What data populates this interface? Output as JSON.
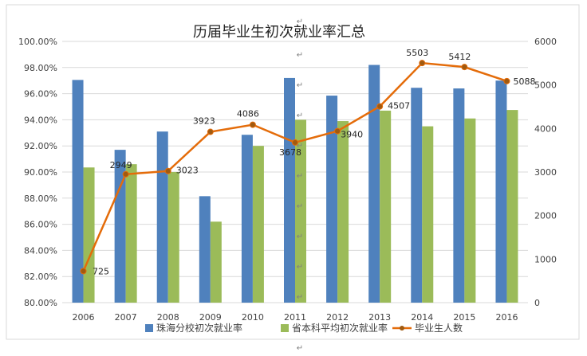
{
  "chart_data": {
    "type": "bar",
    "title": "历届毕业生初次就业率汇总",
    "categories": [
      "2006",
      "2007",
      "2008",
      "2009",
      "2010",
      "2011",
      "2012",
      "2013",
      "2014",
      "2015",
      "2016"
    ],
    "series": [
      {
        "name": "珠海分校初次就业率",
        "type": "bar",
        "axis": "left",
        "color": "#4F81BD",
        "values": [
          97.05,
          91.7,
          93.1,
          88.15,
          92.85,
          97.2,
          95.85,
          98.2,
          96.45,
          96.4,
          97.0
        ]
      },
      {
        "name": "省本科平均初次就业率",
        "type": "bar",
        "axis": "left",
        "color": "#9BBB59",
        "values": [
          90.35,
          90.6,
          90.0,
          86.2,
          92.0,
          94.0,
          93.9,
          94.7,
          93.5,
          94.1,
          94.75
        ]
      },
      {
        "name": "毕业生人数",
        "type": "line",
        "axis": "right",
        "color": "#E46C0A",
        "values": [
          725,
          2949,
          3023,
          3923,
          4086,
          3678,
          3940,
          4507,
          5503,
          5412,
          5088
        ]
      }
    ],
    "left_axis": {
      "ylim": [
        80,
        100
      ],
      "ticks": [
        "80.00%",
        "82.00%",
        "84.00%",
        "86.00%",
        "88.00%",
        "90.00%",
        "92.00%",
        "94.00%",
        "96.00%",
        "98.00%",
        "100.00%"
      ]
    },
    "right_axis": {
      "ylim": [
        0,
        6000
      ],
      "ticks": [
        "0",
        "1000",
        "2000",
        "3000",
        "4000",
        "5000",
        "6000"
      ]
    },
    "grid": true,
    "legend_position": "bottom"
  },
  "decor": {
    "paragraph_mark": "↵"
  }
}
